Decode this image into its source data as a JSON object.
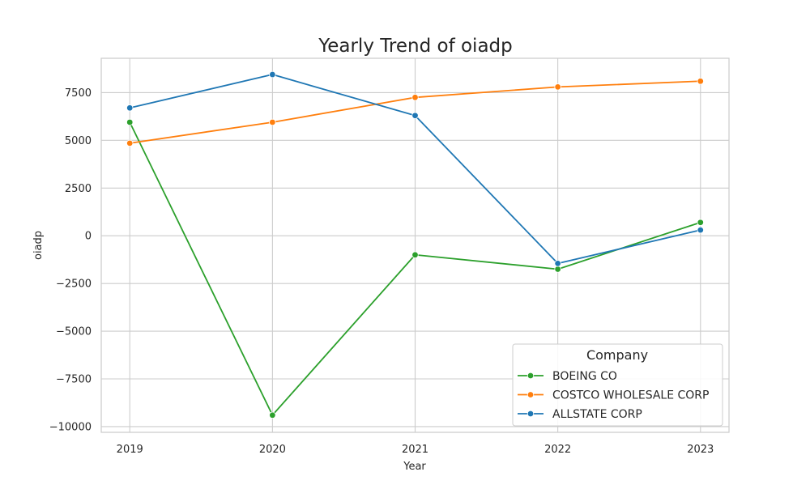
{
  "chart_data": {
    "type": "line",
    "title": "Yearly Trend of oiadp",
    "xlabel": "Year",
    "ylabel": "oiadp",
    "x": [
      2019,
      2020,
      2021,
      2022,
      2023
    ],
    "x_tick_labels": [
      "2019",
      "2020",
      "2021",
      "2022",
      "2023"
    ],
    "xlim": [
      2018.8,
      2023.2
    ],
    "ylim": [
      -10300,
      9300
    ],
    "y_ticks": [
      -10000,
      -7500,
      -5000,
      -2500,
      0,
      2500,
      5000,
      7500
    ],
    "y_tick_labels": [
      "−10000",
      "−7500",
      "−5000",
      "−2500",
      "0",
      "2500",
      "5000",
      "7500"
    ],
    "grid": true,
    "legend": {
      "title": "Company",
      "placement": "lower-right"
    },
    "series": [
      {
        "name": "BOEING CO",
        "color": "#2ca02c",
        "values": [
          5950,
          -9400,
          -1000,
          -1750,
          700
        ]
      },
      {
        "name": "COSTCO WHOLESALE CORP",
        "color": "#ff7f0e",
        "values": [
          4850,
          5950,
          7250,
          7800,
          8100
        ]
      },
      {
        "name": "ALLSTATE CORP",
        "color": "#1f77b4",
        "values": [
          6700,
          8450,
          6300,
          -1450,
          300
        ]
      }
    ]
  }
}
